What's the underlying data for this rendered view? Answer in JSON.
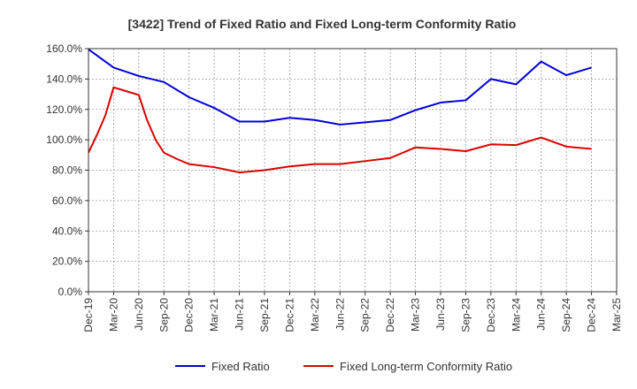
{
  "chart_data": {
    "type": "line",
    "title": "[3422]  Trend of Fixed Ratio and Fixed Long-term Conformity Ratio",
    "xlabel": "",
    "ylabel": "",
    "y_unit": "%",
    "ylim": [
      0,
      160
    ],
    "y_ticks": [
      0,
      20,
      40,
      60,
      80,
      100,
      120,
      140,
      160
    ],
    "y_tick_labels": [
      "0.0%",
      "20.0%",
      "40.0%",
      "60.0%",
      "80.0%",
      "100.0%",
      "120.0%",
      "140.0%",
      "160.0%"
    ],
    "x_tick_labels": [
      "Dec-19",
      "Mar-20",
      "Jun-20",
      "Sep-20",
      "Dec-20",
      "Mar-21",
      "Jun-21",
      "Sep-21",
      "Dec-21",
      "Mar-22",
      "Jun-22",
      "Sep-22",
      "Dec-22",
      "Mar-23",
      "Jun-23",
      "Sep-23",
      "Dec-23",
      "Mar-24",
      "Jun-24",
      "Sep-24",
      "Dec-24",
      "Mar-25"
    ],
    "grid": true,
    "legend_position": "bottom",
    "series": [
      {
        "name": "Fixed Ratio",
        "color": "#0000dd",
        "x": [
          0,
          1,
          2,
          3,
          4,
          5,
          6,
          7,
          8,
          9,
          10,
          11,
          12,
          13,
          14,
          15,
          16,
          17,
          18,
          19,
          20
        ],
        "values": [
          159.5,
          147.5,
          142,
          138,
          128,
          121,
          112,
          112,
          114.5,
          113,
          110,
          111.5,
          113,
          119.5,
          124.5,
          126,
          140,
          136.5,
          151.5,
          142.5,
          147.5
        ]
      },
      {
        "name": "Fixed Long-term Conformity Ratio",
        "color": "#dd0000",
        "x": [
          0,
          0.33,
          0.67,
          1,
          1.5,
          2,
          2.33,
          2.67,
          3,
          3.5,
          4,
          5,
          6,
          7,
          8,
          9,
          10,
          11,
          12,
          13,
          14,
          15,
          16,
          17,
          18,
          19,
          20
        ],
        "values": [
          91.5,
          103,
          116,
          134.5,
          132,
          129.5,
          113,
          100,
          91.5,
          87.5,
          84,
          82,
          78.5,
          80,
          82.5,
          84,
          84,
          86,
          88,
          95,
          94,
          92.5,
          97,
          96.5,
          101.5,
          95.5,
          94
        ]
      }
    ]
  }
}
